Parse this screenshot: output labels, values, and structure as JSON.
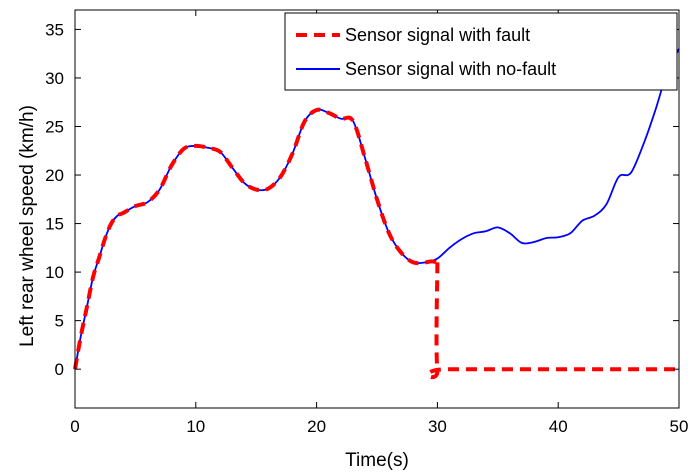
{
  "chart_data": {
    "type": "line",
    "title": "",
    "xlabel": "Time(s)",
    "ylabel": "Left rear wheel speed (km/h)",
    "xlim": [
      0,
      50
    ],
    "ylim": [
      -4,
      37
    ],
    "xticks": [
      "0",
      "10",
      "20",
      "30",
      "40",
      "50"
    ],
    "yticks": [
      "0",
      "5",
      "10",
      "15",
      "20",
      "25",
      "30",
      "35"
    ],
    "grid": false,
    "legend_position": "top-right",
    "series": [
      {
        "name": "Sensor signal with fault",
        "color": "#ff0000",
        "style": "dashed",
        "x": [
          0,
          0.5,
          1,
          1.5,
          2,
          2.5,
          3,
          3.5,
          4,
          5,
          6,
          7,
          8,
          9,
          10,
          11,
          12,
          13,
          14,
          15,
          16,
          17,
          18,
          19,
          20,
          21,
          22,
          23,
          24,
          25,
          26,
          27,
          28,
          29,
          29.5,
          30,
          30,
          31,
          50
        ],
        "y": [
          0,
          3.5,
          6.5,
          9.5,
          11.5,
          13.5,
          15,
          15.8,
          16.1,
          16.8,
          17.2,
          18.5,
          21,
          22.7,
          23,
          22.8,
          22.4,
          20.8,
          19.2,
          18.5,
          18.6,
          19.8,
          22.2,
          25.5,
          26.7,
          26.4,
          25.8,
          25.6,
          21.8,
          17.5,
          14,
          12,
          11,
          11,
          11.1,
          11,
          0,
          0,
          0
        ]
      },
      {
        "name": "Sensor signal with no-fault",
        "color": "#0000ff",
        "style": "solid",
        "x": [
          0,
          0.5,
          1,
          1.5,
          2,
          2.5,
          3,
          3.5,
          4,
          5,
          6,
          7,
          8,
          9,
          10,
          11,
          12,
          13,
          14,
          15,
          16,
          17,
          18,
          19,
          20,
          21,
          22,
          23,
          24,
          25,
          26,
          27,
          28,
          29,
          30,
          31,
          32,
          33,
          34,
          35,
          36,
          37,
          38,
          39,
          40,
          41,
          42,
          43,
          44,
          45,
          46,
          47,
          48,
          49,
          50
        ],
        "y": [
          0,
          3.5,
          6.5,
          9.5,
          11.5,
          13.5,
          15,
          15.8,
          16.1,
          16.8,
          17.2,
          18.5,
          21,
          22.7,
          23,
          22.8,
          22.4,
          20.8,
          19.2,
          18.5,
          18.6,
          19.8,
          22.2,
          25.5,
          26.7,
          26.4,
          25.8,
          25.6,
          21.8,
          17.5,
          14,
          12,
          11,
          11,
          11.4,
          12.5,
          13.4,
          14,
          14.2,
          14.6,
          14,
          13,
          13.1,
          13.5,
          13.6,
          14,
          15.3,
          15.8,
          17,
          19.8,
          20.2,
          23,
          26.5,
          30.5,
          33
        ]
      }
    ]
  }
}
